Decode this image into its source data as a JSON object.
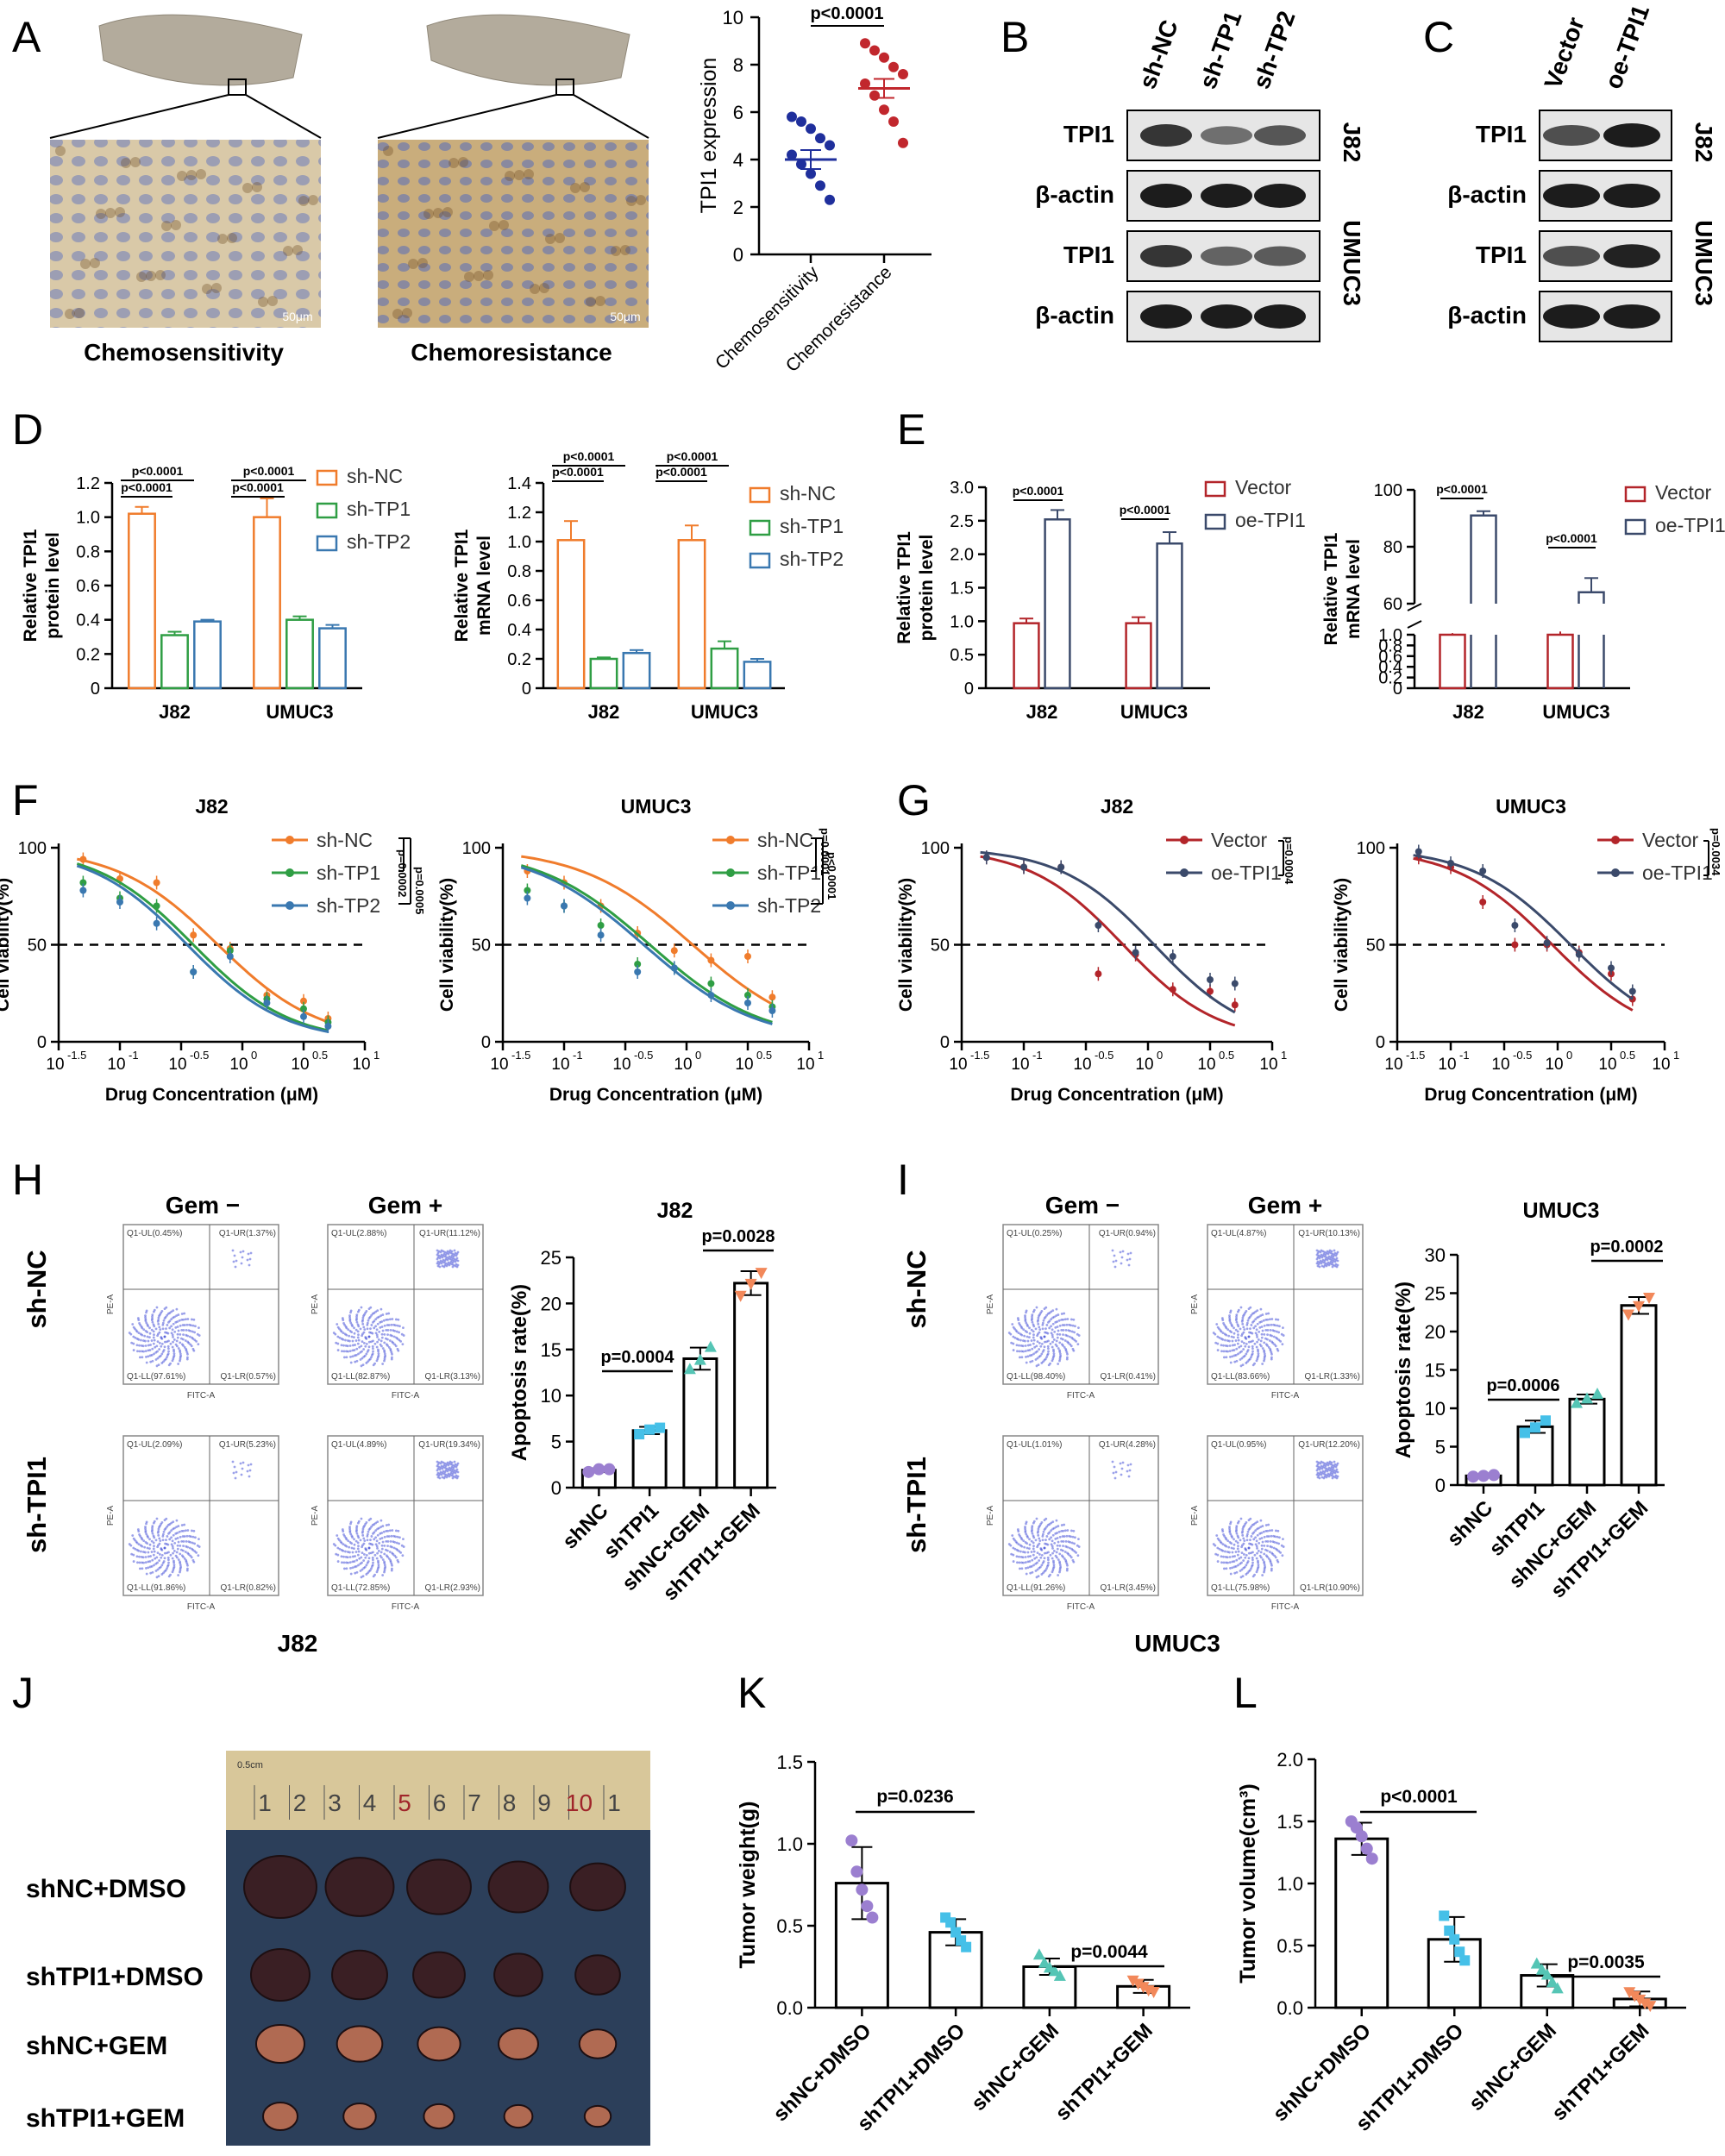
{
  "colors": {
    "orange": "#f07c2c",
    "green": "#2f9e44",
    "blue": "#3a78b0",
    "dred": "#b3252a",
    "navy": "#3b4a6b",
    "scatter_blue": "#1f2f9c",
    "scatter_red": "#c1272d",
    "purple": "#9b7fd0",
    "cyan": "#45c0e8",
    "teal": "#55c5b5",
    "salmon": "#f2885a"
  },
  "panel_labels": {
    "A": "A",
    "B": "B",
    "C": "C",
    "D": "D",
    "E": "E",
    "F": "F",
    "G": "G",
    "H": "H",
    "I": "I",
    "J": "J",
    "K": "K",
    "L": "L"
  },
  "panelA": {
    "label_left": "Chemosensitivity",
    "label_right": "Chemoresistance",
    "scale_left": "50μm",
    "scale_right": "50μm"
  },
  "chart_data": [
    {
      "id": "A-scatter",
      "type": "scatter",
      "ylabel": "TPI1 expression",
      "ylim": [
        0,
        10
      ],
      "yticks": [
        "0",
        "2",
        "4",
        "6",
        "8",
        "10"
      ],
      "categories": [
        "Chemosensitivity",
        "Chemoresistance"
      ],
      "pvalue": "p<0.0001",
      "groups": [
        {
          "name": "Chemosensitivity",
          "mean": 4.0,
          "sem": 0.4,
          "points": [
            5.8,
            5.6,
            5.3,
            4.9,
            4.6,
            4.2,
            3.8,
            3.4,
            2.9,
            2.3
          ]
        },
        {
          "name": "Chemoresistance",
          "mean": 7.0,
          "sem": 0.4,
          "points": [
            8.9,
            8.6,
            8.3,
            7.9,
            7.6,
            7.2,
            6.7,
            6.1,
            5.6,
            4.7
          ]
        }
      ]
    },
    {
      "id": "D-protein",
      "type": "bar",
      "ylabel1": "Relative TPI1",
      "ylabel2": "protein level",
      "ylim": [
        0,
        1.2
      ],
      "yticks": [
        "0",
        "0.2",
        "0.4",
        "0.6",
        "0.8",
        "1.0",
        "1.2"
      ],
      "categories": [
        "J82",
        "UMUC3"
      ],
      "series": [
        {
          "name": "sh-NC",
          "values": [
            1.02,
            1.0
          ],
          "err": [
            0.04,
            0.11
          ]
        },
        {
          "name": "sh-TP1",
          "values": [
            0.31,
            0.4
          ],
          "err": [
            0.02,
            0.02
          ]
        },
        {
          "name": "sh-TP2",
          "values": [
            0.39,
            0.35
          ],
          "err": [
            0.01,
            0.02
          ]
        }
      ],
      "pvals": [
        "p<0.0001",
        "p<0.0001",
        "p<0.0001",
        "p<0.0001"
      ]
    },
    {
      "id": "D-mrna",
      "type": "bar",
      "ylabel1": "Relative TPI1",
      "ylabel2": "mRNA level",
      "ylim": [
        0,
        1.4
      ],
      "yticks": [
        "0",
        "0.2",
        "0.4",
        "0.6",
        "0.8",
        "1.0",
        "1.2",
        "1.4"
      ],
      "categories": [
        "J82",
        "UMUC3"
      ],
      "series": [
        {
          "name": "sh-NC",
          "values": [
            1.01,
            1.01
          ],
          "err": [
            0.13,
            0.1
          ]
        },
        {
          "name": "sh-TP1",
          "values": [
            0.2,
            0.27
          ],
          "err": [
            0.01,
            0.05
          ]
        },
        {
          "name": "sh-TP2",
          "values": [
            0.24,
            0.18
          ],
          "err": [
            0.02,
            0.02
          ]
        }
      ],
      "pvals": [
        "p<0.0001",
        "p<0.0001",
        "p<0.0001",
        "p<0.0001"
      ]
    },
    {
      "id": "E-protein",
      "type": "bar",
      "ylabel1": "Relative TPI1",
      "ylabel2": "protein level",
      "ylim": [
        0,
        3.0
      ],
      "yticks": [
        "0",
        "0.5",
        "1.0",
        "1.5",
        "2.0",
        "2.5",
        "3.0"
      ],
      "categories": [
        "J82",
        "UMUC3"
      ],
      "series": [
        {
          "name": "Vector",
          "values": [
            0.97,
            0.97
          ],
          "err": [
            0.07,
            0.09
          ]
        },
        {
          "name": "oe-TPI1",
          "values": [
            2.52,
            2.16
          ],
          "err": [
            0.14,
            0.17
          ]
        }
      ],
      "pvals": [
        "p<0.0001",
        "p<0.0001"
      ]
    },
    {
      "id": "E-mrna",
      "type": "bar",
      "ylabel1": "Relative TPI1",
      "ylabel2": "mRNA level",
      "yticks_low": [
        "0",
        "0.2",
        "0.4",
        "0.6",
        "0.8",
        "1.0"
      ],
      "yticks_high": [
        "60",
        "80",
        "100"
      ],
      "categories": [
        "J82",
        "UMUC3"
      ],
      "series": [
        {
          "name": "Vector",
          "values": [
            1.0,
            1.0
          ],
          "err": [
            0.03,
            0.06
          ]
        },
        {
          "name": "oe-TPI1",
          "values": [
            91,
            64
          ],
          "err": [
            1.5,
            5
          ]
        }
      ],
      "pvals": [
        "p<0.0001",
        "p<0.0001"
      ]
    },
    {
      "id": "F-J82",
      "type": "line",
      "title": "J82",
      "xlabel": "Drug Concentration (μM)",
      "ylabel": "Cell viability(%)",
      "xlim": [
        -1.5,
        1
      ],
      "ylim": [
        0,
        100
      ],
      "yticks": [
        "0",
        "50",
        "100"
      ],
      "series": [
        {
          "name": "sh-NC",
          "ic50": -0.2,
          "slope": 1.05,
          "points": [
            [
              -1.3,
              94
            ],
            [
              -1.0,
              84
            ],
            [
              -0.7,
              82
            ],
            [
              -0.4,
              55
            ],
            [
              -0.1,
              48
            ],
            [
              0.2,
              24
            ],
            [
              0.5,
              21
            ],
            [
              0.7,
              12
            ]
          ]
        },
        {
          "name": "sh-TP1",
          "ic50": -0.4,
          "slope": 1.1,
          "points": [
            [
              -1.3,
              82
            ],
            [
              -1.0,
              74
            ],
            [
              -0.7,
              70
            ],
            [
              -0.4,
              36
            ],
            [
              -0.1,
              47
            ],
            [
              0.2,
              22
            ],
            [
              0.5,
              17
            ],
            [
              0.7,
              10
            ]
          ]
        },
        {
          "name": "sh-TP2",
          "ic50": -0.45,
          "slope": 1.1,
          "points": [
            [
              -1.3,
              78
            ],
            [
              -1.0,
              72
            ],
            [
              -0.7,
              61
            ],
            [
              -0.4,
              36
            ],
            [
              -0.1,
              44
            ],
            [
              0.2,
              20
            ],
            [
              0.5,
              13
            ],
            [
              0.7,
              8
            ]
          ]
        }
      ],
      "pvals": [
        "p=0.0002",
        "p=0.0005"
      ]
    },
    {
      "id": "F-UMUC3",
      "type": "line",
      "title": "UMUC3",
      "xlabel": "Drug Concentration (μM)",
      "ylabel": "Cell viability(%)",
      "xlim": [
        -1.5,
        1
      ],
      "ylim": [
        0,
        100
      ],
      "yticks": [
        "0",
        "50",
        "100"
      ],
      "series": [
        {
          "name": "sh-NC",
          "ic50": 0.05,
          "slope": 0.95,
          "points": [
            [
              -1.3,
              88
            ],
            [
              -1.0,
              82
            ],
            [
              -0.7,
              70
            ],
            [
              -0.4,
              56
            ],
            [
              -0.1,
              47
            ],
            [
              0.2,
              42
            ],
            [
              0.5,
              44
            ],
            [
              0.7,
              23
            ]
          ]
        },
        {
          "name": "sh-TP1",
          "ic50": -0.3,
          "slope": 0.95,
          "points": [
            [
              -1.3,
              78
            ],
            [
              -1.0,
              70
            ],
            [
              -0.7,
              60
            ],
            [
              -0.4,
              40
            ],
            [
              -0.1,
              38
            ],
            [
              0.2,
              30
            ],
            [
              0.5,
              24
            ],
            [
              0.7,
              18
            ]
          ]
        },
        {
          "name": "sh-TP2",
          "ic50": -0.35,
          "slope": 0.95,
          "points": [
            [
              -1.3,
              74
            ],
            [
              -1.0,
              70
            ],
            [
              -0.7,
              55
            ],
            [
              -0.4,
              36
            ],
            [
              -0.1,
              38
            ],
            [
              0.2,
              24
            ],
            [
              0.5,
              20
            ],
            [
              0.7,
              16
            ]
          ]
        }
      ],
      "pvals": [
        "p=0.0001",
        "p<0.0001"
      ]
    },
    {
      "id": "G-J82",
      "type": "line",
      "title": "J82",
      "xlabel": "Drug Concentration (μM)",
      "ylabel": "Cell viability(%)",
      "xlim": [
        -1.5,
        1
      ],
      "ylim": [
        0,
        100
      ],
      "yticks": [
        "0",
        "50",
        "100"
      ],
      "series": [
        {
          "name": "Vector",
          "ic50": -0.2,
          "slope": 1.15,
          "points": [
            [
              -1.3,
              95
            ],
            [
              -1.0,
              90
            ],
            [
              -0.7,
              90
            ],
            [
              -0.4,
              35
            ],
            [
              -0.1,
              45
            ],
            [
              0.2,
              27
            ],
            [
              0.5,
              26
            ],
            [
              0.7,
              19
            ]
          ]
        },
        {
          "name": "oe-TPI1",
          "ic50": 0.05,
          "slope": 1.15,
          "points": [
            [
              -1.3,
              95
            ],
            [
              -1.0,
              90
            ],
            [
              -0.7,
              90
            ],
            [
              -0.4,
              60
            ],
            [
              -0.1,
              46
            ],
            [
              0.2,
              44
            ],
            [
              0.5,
              32
            ],
            [
              0.7,
              30
            ]
          ]
        }
      ],
      "pvals": [
        "p=0.0004"
      ]
    },
    {
      "id": "G-UMUC3",
      "type": "line",
      "title": "UMUC3",
      "xlabel": "Drug Concentration (μM)",
      "ylabel": "Cell viability(%)",
      "xlim": [
        -1.5,
        1
      ],
      "ylim": [
        0,
        100
      ],
      "yticks": [
        "0",
        "50",
        "100"
      ],
      "series": [
        {
          "name": "Vector",
          "ic50": -0.05,
          "slope": 0.95,
          "points": [
            [
              -1.3,
              95
            ],
            [
              -1.0,
              90
            ],
            [
              -0.7,
              72
            ],
            [
              -0.4,
              50
            ],
            [
              -0.1,
              50
            ],
            [
              0.2,
              46
            ],
            [
              0.5,
              35
            ],
            [
              0.7,
              22
            ]
          ]
        },
        {
          "name": "oe-TPI1",
          "ic50": 0.12,
          "slope": 0.95,
          "points": [
            [
              -1.3,
              98
            ],
            [
              -1.0,
              92
            ],
            [
              -0.7,
              88
            ],
            [
              -0.4,
              60
            ],
            [
              -0.1,
              51
            ],
            [
              0.2,
              45
            ],
            [
              0.5,
              38
            ],
            [
              0.7,
              26
            ]
          ]
        }
      ],
      "pvals": [
        "p=0.0034"
      ]
    },
    {
      "id": "H-bar",
      "type": "bar",
      "title": "J82",
      "ylabel": "Apoptosis rate(%)",
      "ylim": [
        0,
        25
      ],
      "yticks": [
        "0",
        "5",
        "10",
        "15",
        "20",
        "25"
      ],
      "categories": [
        "shNC",
        "shTPI1",
        "shNC+GEM",
        "shTPI1+GEM"
      ],
      "values": [
        1.9,
        6.2,
        14.0,
        22.2
      ],
      "err": [
        0.2,
        0.4,
        1.2,
        1.3
      ],
      "points": [
        [
          1.7,
          2.0,
          2.0
        ],
        [
          5.8,
          6.3,
          6.5
        ],
        [
          12.8,
          13.8,
          15.2
        ],
        [
          20.9,
          22.2,
          23.4
        ]
      ],
      "pvals": [
        "p=0.0004",
        "p=0.0028"
      ]
    },
    {
      "id": "I-bar",
      "type": "bar",
      "title": "UMUC3",
      "ylabel": "Apoptosis rate(%)",
      "ylim": [
        0,
        30
      ],
      "yticks": [
        "0",
        "5",
        "10",
        "15",
        "20",
        "25",
        "30"
      ],
      "categories": [
        "shNC",
        "shTPI1",
        "shNC+GEM",
        "shTPI1+GEM"
      ],
      "values": [
        1.2,
        7.6,
        11.2,
        23.4
      ],
      "err": [
        0.1,
        0.8,
        0.6,
        1.1
      ],
      "points": [
        [
          1.1,
          1.2,
          1.3
        ],
        [
          6.8,
          7.5,
          8.4
        ],
        [
          10.6,
          11.2,
          11.8
        ],
        [
          22.3,
          23.4,
          24.5
        ]
      ],
      "pvals": [
        "p=0.0006",
        "p=0.0002"
      ]
    },
    {
      "id": "K-bar",
      "type": "bar",
      "ylabel": "Tumor weight(g)",
      "ylim": [
        0,
        1.5
      ],
      "yticks": [
        "0.0",
        "0.5",
        "1.0",
        "1.5"
      ],
      "categories": [
        "shNC+DMSO",
        "shTPI1+DMSO",
        "shNC+GEM",
        "shTPI1+GEM"
      ],
      "values": [
        0.76,
        0.46,
        0.25,
        0.13
      ],
      "err": [
        0.22,
        0.08,
        0.05,
        0.04
      ],
      "points": [
        [
          1.02,
          0.83,
          0.72,
          0.62,
          0.55
        ],
        [
          0.55,
          0.52,
          0.46,
          0.41,
          0.37
        ],
        [
          0.32,
          0.27,
          0.24,
          0.22,
          0.19
        ],
        [
          0.17,
          0.15,
          0.13,
          0.11,
          0.1
        ]
      ],
      "pvals": [
        "p=0.0236",
        "p=0.0044"
      ]
    },
    {
      "id": "L-bar",
      "type": "bar",
      "ylabel": "Tumor volume(cm³)",
      "ylim": [
        0,
        2.0
      ],
      "yticks": [
        "0.0",
        "0.5",
        "1.0",
        "1.5",
        "2.0"
      ],
      "categories": [
        "shNC+DMSO",
        "shTPI1+DMSO",
        "shNC+GEM",
        "shTPI1+GEM"
      ],
      "values": [
        1.36,
        0.55,
        0.26,
        0.07
      ],
      "err": [
        0.13,
        0.18,
        0.09,
        0.06
      ],
      "points": [
        [
          1.5,
          1.45,
          1.38,
          1.28,
          1.2
        ],
        [
          0.74,
          0.62,
          0.55,
          0.45,
          0.38
        ],
        [
          0.35,
          0.3,
          0.26,
          0.2,
          0.15
        ],
        [
          0.13,
          0.1,
          0.07,
          0.04,
          0.02
        ]
      ],
      "pvals": [
        "p<0.0001",
        "p=0.0035"
      ]
    }
  ],
  "blots": {
    "B": {
      "lanes": [
        "sh-NC",
        "sh-TP1",
        "sh-TP2"
      ],
      "rows": [
        "TPI1",
        "β-actin",
        "TPI1",
        "β-actin"
      ],
      "cells": [
        "J82",
        "UMUC3"
      ]
    },
    "C": {
      "lanes": [
        "Vector",
        "oe-TPI1"
      ],
      "rows": [
        "TPI1",
        "β-actin",
        "TPI1",
        "β-actin"
      ],
      "cells": [
        "J82",
        "UMUC3"
      ]
    }
  },
  "flow": {
    "H": {
      "cols": [
        "Gem −",
        "Gem +"
      ],
      "rows": [
        "sh-NC",
        "sh-TPI1"
      ],
      "cell": "J82",
      "xaxis": "FITC-A",
      "yaxis": "PE-A",
      "quads": [
        [
          "Q1-UL(0.45%)",
          "Q1-UR(1.37%)",
          "Q1-LL(97.61%)",
          "Q1-LR(0.57%)"
        ],
        [
          "Q1-UL(2.88%)",
          "Q1-UR(11.12%)",
          "Q1-LL(82.87%)",
          "Q1-LR(3.13%)"
        ],
        [
          "Q1-UL(2.09%)",
          "Q1-UR(5.23%)",
          "Q1-LL(91.86%)",
          "Q1-LR(0.82%)"
        ],
        [
          "Q1-UL(4.89%)",
          "Q1-UR(19.34%)",
          "Q1-LL(72.85%)",
          "Q1-LR(2.93%)"
        ]
      ]
    },
    "I": {
      "cols": [
        "Gem −",
        "Gem +"
      ],
      "rows": [
        "sh-NC",
        "sh-TPI1"
      ],
      "cell": "UMUC3",
      "xaxis": "FITC-A",
      "yaxis": "PE-A",
      "quads": [
        [
          "Q1-UL(0.25%)",
          "Q1-UR(0.94%)",
          "Q1-LL(98.40%)",
          "Q1-LR(0.41%)"
        ],
        [
          "Q1-UL(4.87%)",
          "Q1-UR(10.13%)",
          "Q1-LL(83.66%)",
          "Q1-LR(1.33%)"
        ],
        [
          "Q1-UL(1.01%)",
          "Q1-UR(4.28%)",
          "Q1-LL(91.26%)",
          "Q1-LR(3.45%)"
        ],
        [
          "Q1-UL(0.95%)",
          "Q1-UR(12.20%)",
          "Q1-LL(75.98%)",
          "Q1-LR(10.90%)"
        ]
      ]
    }
  },
  "tumor": {
    "rows": [
      "shNC+DMSO",
      "shTPI1+DMSO",
      "shNC+GEM",
      "shTPI1+GEM"
    ],
    "ruler": [
      "0.5cm",
      "1",
      "2",
      "3",
      "4",
      "5",
      "6",
      "7",
      "8",
      "9",
      "10",
      "1"
    ]
  }
}
